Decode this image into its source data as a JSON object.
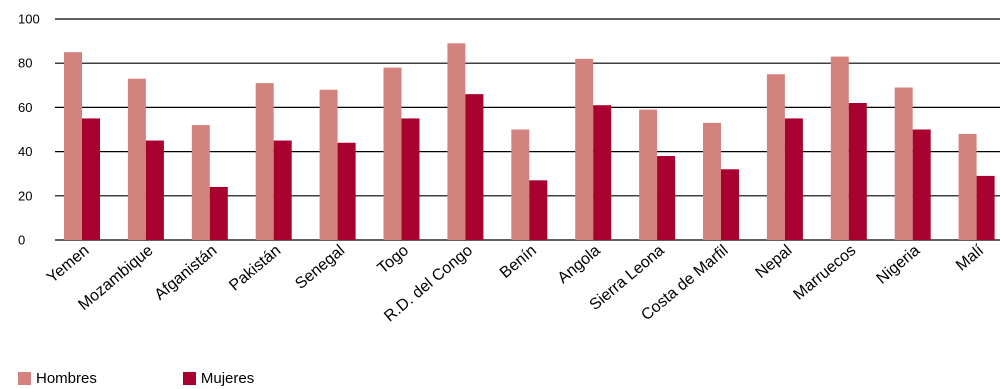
{
  "chart_data": {
    "type": "bar",
    "categories": [
      "Yemen",
      "Mozambique",
      "Afganistán",
      "Pakistán",
      "Senegal",
      "Togo",
      "R.D. del Congo",
      "Benín",
      "Angola",
      "Sierra Leona",
      "Costa de Marfil",
      "Nepal",
      "Marruecos",
      "Nigeria",
      "Malí"
    ],
    "series": [
      {
        "name": "Hombres",
        "color": "#d4827e",
        "values": [
          85,
          73,
          52,
          71,
          68,
          78,
          89,
          50,
          82,
          59,
          53,
          75,
          83,
          69,
          48
        ]
      },
      {
        "name": "Mujeres",
        "color": "#a8002f",
        "values": [
          55,
          45,
          24,
          45,
          44,
          55,
          66,
          27,
          61,
          38,
          32,
          55,
          62,
          50,
          29
        ]
      }
    ],
    "yticks": [
      "0",
      "20",
      "40",
      "60",
      "80",
      "100"
    ],
    "ylim": [
      0,
      100
    ],
    "grid": true,
    "legend_position": "bottom-left"
  }
}
